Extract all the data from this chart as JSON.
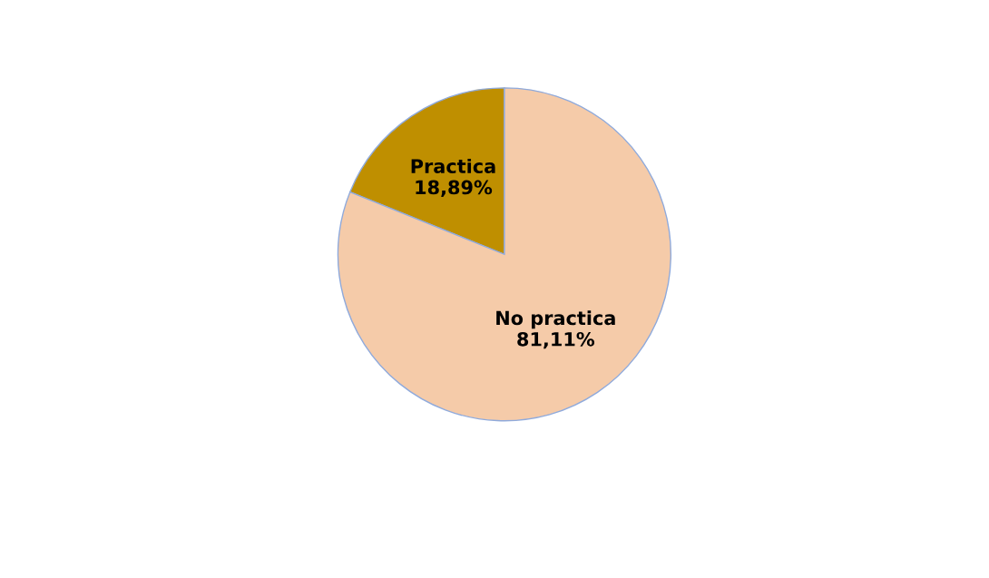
{
  "chart_data": {
    "type": "pie",
    "categories": [
      "Practica",
      "No practica"
    ],
    "values": [
      18.89,
      81.11
    ],
    "value_labels": [
      "18,89%",
      "81,11%"
    ],
    "colors": [
      "#bf8f00",
      "#f5cba9"
    ]
  }
}
